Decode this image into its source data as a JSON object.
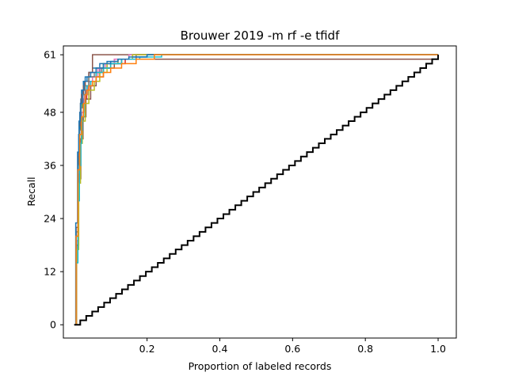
{
  "chart_data": {
    "type": "line",
    "title": "Brouwer 2019 -m rf -e tfidf",
    "xlabel": "Proportion of labeled records",
    "ylabel": "Recall",
    "xlim": [
      -0.03,
      1.05
    ],
    "ylim": [
      -3,
      63
    ],
    "xticks": [
      {
        "value": 0.2,
        "label": "0.2"
      },
      {
        "value": 0.4,
        "label": "0.4"
      },
      {
        "value": 0.6,
        "label": "0.6"
      },
      {
        "value": 0.8,
        "label": "0.8"
      },
      {
        "value": 1.0,
        "label": "1.0"
      }
    ],
    "yticks": [
      {
        "value": 0,
        "label": "0"
      },
      {
        "value": 12,
        "label": "12"
      },
      {
        "value": 24,
        "label": "24"
      },
      {
        "value": 36,
        "label": "36"
      },
      {
        "value": 48,
        "label": "48"
      },
      {
        "value": 61,
        "label": "61"
      }
    ],
    "grid": false,
    "legend": false,
    "total_relevant": 61,
    "series": [
      {
        "color": "#1f77b4",
        "x": [
          0,
          0.005,
          0.01,
          0.012,
          0.015,
          0.018,
          0.02,
          0.025,
          0.03,
          0.04,
          0.05,
          0.07,
          0.09,
          0.12,
          0.16,
          0.2,
          1.0
        ],
        "y": [
          0,
          20,
          36,
          43,
          48,
          51,
          53,
          55,
          56,
          57,
          58,
          59,
          59.5,
          60,
          60.5,
          61,
          61
        ]
      },
      {
        "color": "#ff7f0e",
        "x": [
          0,
          0.006,
          0.012,
          0.016,
          0.02,
          0.025,
          0.03,
          0.04,
          0.05,
          0.07,
          0.1,
          0.13,
          0.17,
          1.0
        ],
        "y": [
          0,
          18,
          33,
          41,
          46,
          50,
          52,
          54,
          56,
          58,
          59,
          60,
          61,
          61
        ]
      },
      {
        "color": "#2ca02c",
        "x": [
          0,
          0.005,
          0.01,
          0.014,
          0.018,
          0.022,
          0.03,
          0.04,
          0.06,
          0.08,
          0.11,
          0.15,
          1.0
        ],
        "y": [
          0,
          21,
          37,
          44,
          49,
          52,
          54,
          56,
          58,
          59,
          60,
          61,
          61
        ]
      },
      {
        "color": "#d62728",
        "x": [
          0,
          0.006,
          0.011,
          0.016,
          0.02,
          0.026,
          0.034,
          0.045,
          0.06,
          0.08,
          0.1,
          0.14,
          1.0
        ],
        "y": [
          0,
          19,
          34,
          42,
          47,
          51,
          53,
          55,
          57,
          58,
          59,
          60,
          61
        ]
      },
      {
        "color": "#9467bd",
        "x": [
          0,
          0.005,
          0.01,
          0.015,
          0.02,
          0.025,
          0.03,
          0.04,
          0.05,
          0.07,
          0.09,
          0.12,
          0.16,
          1.0
        ],
        "y": [
          0,
          20,
          35,
          43,
          48,
          51,
          53,
          55,
          56,
          58,
          59,
          60,
          61,
          61
        ]
      },
      {
        "color": "#8c564b",
        "x": [
          0,
          0.005,
          0.01,
          0.013,
          0.017,
          0.02,
          0.025,
          0.03,
          0.04,
          0.05,
          0.33,
          1.0
        ],
        "y": [
          0,
          22,
          38,
          45,
          50,
          52,
          54,
          55,
          57,
          61,
          61,
          61
        ]
      },
      {
        "color": "#8c564b",
        "x": [
          0,
          0.006,
          0.012,
          0.018,
          0.024,
          0.032,
          0.045,
          0.06,
          0.08,
          0.11,
          0.33,
          1.0
        ],
        "y": [
          0,
          18,
          33,
          42,
          47,
          51,
          54,
          56,
          58,
          60,
          60,
          61
        ]
      },
      {
        "color": "#e377c2",
        "x": [
          0,
          0.005,
          0.01,
          0.015,
          0.02,
          0.028,
          0.038,
          0.05,
          0.065,
          0.085,
          0.11,
          0.15,
          1.0
        ],
        "y": [
          0,
          19,
          35,
          43,
          48,
          52,
          54,
          56,
          58,
          59,
          60,
          61,
          61
        ]
      },
      {
        "color": "#7f7f7f",
        "x": [
          0,
          0.005,
          0.01,
          0.014,
          0.019,
          0.024,
          0.03,
          0.04,
          0.055,
          0.075,
          0.1,
          0.13,
          0.17,
          1.0
        ],
        "y": [
          0,
          21,
          36,
          44,
          49,
          52,
          54,
          56,
          57,
          58,
          59,
          60,
          61,
          61
        ]
      },
      {
        "color": "#bcbd22",
        "x": [
          0,
          0.006,
          0.012,
          0.017,
          0.022,
          0.03,
          0.04,
          0.055,
          0.07,
          0.09,
          0.12,
          0.16,
          1.0
        ],
        "y": [
          0,
          17,
          32,
          41,
          46,
          50,
          53,
          55,
          57,
          59,
          60,
          61,
          61
        ]
      },
      {
        "color": "#17becf",
        "x": [
          0,
          0.005,
          0.01,
          0.014,
          0.018,
          0.02,
          0.022,
          0.026,
          0.03,
          0.035,
          0.045,
          0.06,
          0.08,
          0.1,
          0.13,
          0.18,
          0.24,
          1.0
        ],
        "y": [
          0,
          14,
          28,
          36,
          41,
          44,
          47,
          50,
          52,
          54,
          55,
          57,
          58,
          59,
          60,
          60.5,
          61,
          61
        ]
      },
      {
        "color": "#1f77b4",
        "x": [
          0,
          0.004,
          0.009,
          0.013,
          0.017,
          0.022,
          0.027,
          0.035,
          0.045,
          0.06,
          0.08,
          0.1,
          0.12,
          0.15,
          0.2,
          0.28,
          1.0
        ],
        "y": [
          0,
          23,
          39,
          46,
          50,
          53,
          55,
          56,
          57,
          58,
          59,
          59.5,
          60,
          60.5,
          61,
          61,
          61
        ]
      },
      {
        "color": "#ff7f0e",
        "x": [
          0,
          0.005,
          0.01,
          0.015,
          0.02,
          0.025,
          0.03,
          0.035,
          0.04,
          0.05,
          0.06,
          0.08,
          0.1,
          0.13,
          0.17,
          0.22,
          1.0
        ],
        "y": [
          0,
          20,
          35,
          43,
          47,
          50,
          52,
          53,
          54,
          55,
          56,
          57,
          58,
          59,
          60,
          61,
          61
        ]
      }
    ],
    "random_baseline": {
      "color": "#000000",
      "steps": 61,
      "x_end": 1.0
    }
  }
}
